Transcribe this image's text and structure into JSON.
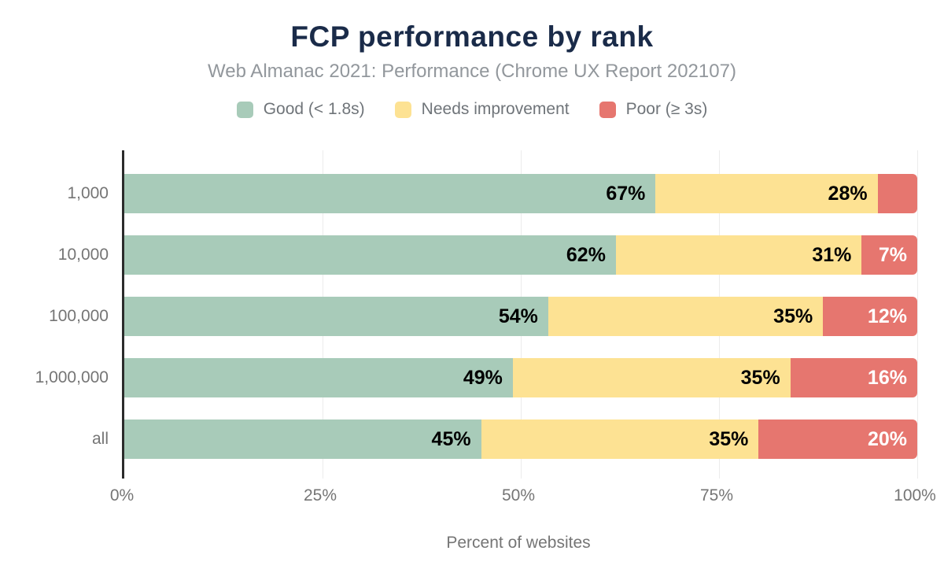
{
  "title": "FCP performance by rank",
  "subtitle": "Web Almanac 2021: Performance (Chrome UX Report 202107)",
  "legend": {
    "items": [
      {
        "label": "Good (< 1.8s)",
        "color": "#a8cbb9"
      },
      {
        "label": "Needs improvement",
        "color": "#fde293"
      },
      {
        "label": "Poor (≥ 3s)",
        "color": "#e6766f"
      }
    ]
  },
  "xaxis": {
    "label": "Percent of websites",
    "ticks": [
      "0%",
      "25%",
      "50%",
      "75%",
      "100%"
    ],
    "tick_positions": [
      0,
      25,
      50,
      75,
      100
    ]
  },
  "colors": {
    "title": "#1a2b49",
    "subtitle": "#92979c",
    "axis_text": "#757575",
    "axis_line": "#2b2b2b",
    "gridline": "#ececec",
    "background": "#ffffff",
    "good": "#a8cbb9",
    "needs_improvement": "#fde293",
    "poor": "#e6766f"
  },
  "chart_data": {
    "type": "bar",
    "orientation": "horizontal",
    "stacked": true,
    "title": "FCP performance by rank",
    "subtitle": "Web Almanac 2021: Performance (Chrome UX Report 202107)",
    "xlabel": "Percent of websites",
    "ylabel": "",
    "xlim": [
      0,
      100
    ],
    "grid": "vertical",
    "gridline_positions": [
      25,
      50,
      75,
      100
    ],
    "legend_position": "top",
    "categories": [
      "1,000",
      "10,000",
      "100,000",
      "1,000,000",
      "all"
    ],
    "series": [
      {
        "name": "Good (< 1.8s)",
        "color": "#a8cbb9",
        "label_color": "#000000",
        "values": [
          67,
          62,
          54,
          49,
          45
        ],
        "labels": [
          "67%",
          "62%",
          "54%",
          "49%",
          "45%"
        ]
      },
      {
        "name": "Needs improvement",
        "color": "#fde293",
        "label_color": "#000000",
        "values": [
          28,
          31,
          35,
          35,
          35
        ],
        "labels": [
          "28%",
          "31%",
          "35%",
          "35%",
          "35%"
        ]
      },
      {
        "name": "Poor (≥ 3s)",
        "color": "#e6766f",
        "label_color": "#ffffff",
        "values": [
          5,
          7,
          12,
          16,
          20
        ],
        "labels": [
          "",
          "7%",
          "12%",
          "16%",
          "20%"
        ]
      }
    ]
  }
}
